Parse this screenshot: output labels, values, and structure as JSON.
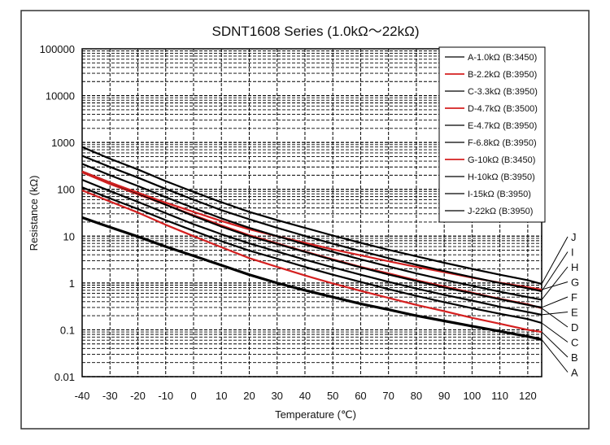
{
  "chart_data": {
    "type": "line",
    "title": "SDNT1608 Series (1.0kΩ～22kΩ)",
    "xlabel": "Temperature (℃)",
    "ylabel": "Resistance (kΩ)",
    "xscale": "linear",
    "yscale": "log",
    "xlim": [
      -40,
      125
    ],
    "ylim": [
      0.01,
      100000
    ],
    "x_ticks": [
      -40,
      -30,
      -20,
      -10,
      0,
      10,
      20,
      30,
      40,
      50,
      60,
      70,
      80,
      90,
      100,
      110,
      120
    ],
    "x_tick_labels": [
      "-40",
      "-30",
      "-20",
      "-10",
      "0",
      "10",
      "20",
      "30",
      "40",
      "50",
      "60",
      "70",
      "80",
      "90",
      "100",
      "110",
      "120"
    ],
    "y_ticks": [
      0.01,
      0.1,
      1,
      10,
      100,
      1000,
      10000,
      100000
    ],
    "y_tick_labels": [
      "0.01",
      "0.1",
      "1",
      "10",
      "100",
      "1000",
      "10000",
      "100000"
    ],
    "grid": true,
    "grid_style": "dashed",
    "legend_position": "top-right",
    "x": [
      -40,
      -30,
      -20,
      -10,
      0,
      10,
      20,
      30,
      40,
      50,
      60,
      70,
      80,
      90,
      100,
      110,
      120,
      125
    ],
    "series": [
      {
        "name": "A-1.0kΩ (B:3450)",
        "label": "A",
        "color": "#000000",
        "width": "thick",
        "values": [
          25.0,
          15.5,
          9.8,
          6.0,
          3.8,
          2.4,
          1.5,
          1.0,
          0.7,
          0.5,
          0.36,
          0.27,
          0.2,
          0.155,
          0.12,
          0.093,
          0.072,
          0.062
        ]
      },
      {
        "name": "B-2.2kΩ (B:3950)",
        "label": "B",
        "color": "#d42020",
        "width": "normal",
        "values": [
          95.0,
          55.0,
          32.0,
          17.5,
          10.0,
          5.8,
          3.4,
          2.2,
          1.45,
          0.98,
          0.68,
          0.48,
          0.34,
          0.25,
          0.18,
          0.135,
          0.1,
          0.09
        ]
      },
      {
        "name": "C-3.3kΩ (B:3950)",
        "label": "C",
        "color": "#000000",
        "width": "normal",
        "values": [
          110.0,
          64.0,
          38.0,
          22.0,
          13.0,
          7.8,
          4.9,
          3.3,
          2.2,
          1.5,
          1.05,
          0.74,
          0.53,
          0.39,
          0.29,
          0.22,
          0.17,
          0.14
        ]
      },
      {
        "name": "D-4.7kΩ (B:3500)",
        "label": "D",
        "color": "#d42020",
        "width": "normal",
        "values": [
          230.0,
          130.0,
          78.0,
          47.0,
          28.0,
          17.0,
          10.5,
          7.0,
          4.7,
          3.2,
          2.2,
          1.6,
          1.15,
          0.84,
          0.62,
          0.46,
          0.35,
          0.29
        ]
      },
      {
        "name": "E-4.7kΩ (B:3950)",
        "label": "E",
        "color": "#000000",
        "width": "normal",
        "values": [
          160.0,
          92.0,
          54.0,
          31.0,
          18.0,
          11.0,
          7.0,
          4.7,
          3.15,
          2.15,
          1.5,
          1.06,
          0.76,
          0.56,
          0.42,
          0.31,
          0.24,
          0.21
        ]
      },
      {
        "name": "F-6.8kΩ (B:3950)",
        "label": "F",
        "color": "#000000",
        "width": "normal",
        "values": [
          240.0,
          140.0,
          82.0,
          47.0,
          27.0,
          16.0,
          10.0,
          6.8,
          4.6,
          3.1,
          2.15,
          1.52,
          1.1,
          0.8,
          0.6,
          0.45,
          0.34,
          0.3
        ]
      },
      {
        "name": "G-10kΩ (B:3450)",
        "label": "G",
        "color": "#d42020",
        "width": "normal",
        "values": [
          240.0,
          140.0,
          85.0,
          52.0,
          33.0,
          21.0,
          14.0,
          10.0,
          7.2,
          5.2,
          3.9,
          2.9,
          2.2,
          1.7,
          1.3,
          1.02,
          0.81,
          0.72
        ]
      },
      {
        "name": "H-10kΩ (B:3950)",
        "label": "H",
        "color": "#000000",
        "width": "normal",
        "values": [
          350.0,
          200.0,
          118.0,
          68.0,
          40.0,
          24.0,
          15.0,
          10.0,
          6.7,
          4.6,
          3.2,
          2.25,
          1.6,
          1.17,
          0.87,
          0.65,
          0.5,
          0.44
        ]
      },
      {
        "name": "I-15kΩ (B:3950)",
        "label": "I",
        "color": "#000000",
        "width": "normal",
        "values": [
          520.0,
          300.0,
          178.0,
          102.0,
          60.0,
          36.0,
          23.0,
          15.0,
          10.1,
          6.9,
          4.8,
          3.4,
          2.45,
          1.8,
          1.33,
          1.0,
          0.77,
          0.67
        ]
      },
      {
        "name": "J-22kΩ (B:3950)",
        "label": "J",
        "color": "#000000",
        "width": "normal",
        "values": [
          800.0,
          450.0,
          265.0,
          150.0,
          88.0,
          53.0,
          33.0,
          22.0,
          15.0,
          10.3,
          7.2,
          5.1,
          3.7,
          2.7,
          2.0,
          1.5,
          1.15,
          0.95
        ]
      }
    ],
    "curve_labels": [
      "J",
      "I",
      "H",
      "G",
      "F",
      "E",
      "D",
      "C",
      "B",
      "A"
    ]
  }
}
